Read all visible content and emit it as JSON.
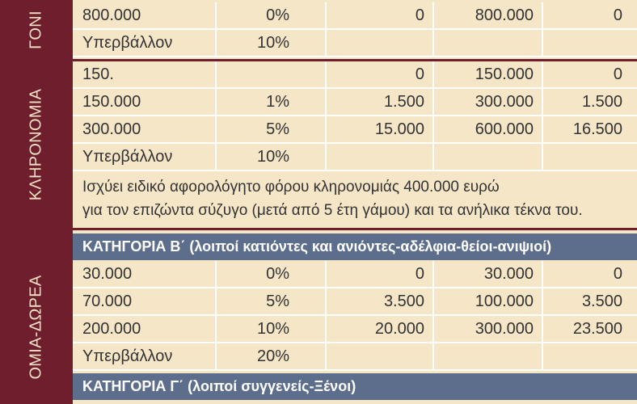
{
  "sections": {
    "goniki": "ΓΟΝΙ",
    "klironomia": "ΚΛΗΡΟΝΟΜΙΑ",
    "dorea": "ΟΜΙΑ-ΔΩΡΕΑ"
  },
  "rows_top": [
    [
      "800.000",
      "0%",
      "0",
      "800.000",
      "0"
    ],
    [
      "Υπερβάλλον",
      "10%",
      "",
      "",
      ""
    ]
  ],
  "rows_klironomia": [
    [
      "150.",
      "",
      "0",
      "150.000",
      "0"
    ],
    [
      "150.000",
      "1%",
      "1.500",
      "300.000",
      "1.500"
    ],
    [
      "300.000",
      "5%",
      "15.000",
      "600.000",
      "16.500"
    ],
    [
      "Υπερβάλλον",
      "10%",
      "",
      "",
      ""
    ]
  ],
  "note": {
    "line1": "Ισχύει ειδικό αφορολόγητο φόρου κληρονομιάς 400.000 ευρώ",
    "line2": "για τον επιζώντα σύζυγο (μετά από 5 έτη γάμου) και τα ανήλικα τέκνα του."
  },
  "category_b": {
    "title": "ΚΑΤΗΓΟΡΙΑ Β΄",
    "subtitle": "(λοιποί κατιόντες και ανιόντες-αδέλφια-θείοι-ανιψιοί)"
  },
  "rows_b": [
    [
      "30.000",
      "0%",
      "0",
      "30.000",
      "0"
    ],
    [
      "70.000",
      "5%",
      "3.500",
      "100.000",
      "3.500"
    ],
    [
      "200.000",
      "10%",
      "20.000",
      "300.000",
      "23.500"
    ],
    [
      "Υπερβάλλον",
      "20%",
      "",
      "",
      ""
    ]
  ],
  "category_c": {
    "title": "ΚΑΤΗΓΟΡΙΑ Γ΄",
    "subtitle": "(λοιποί συγγενείς-Ξένοι)"
  },
  "colors": {
    "band": "#6e1e2c",
    "background": "#f6e6c8",
    "category_bar": "#5d6e8c",
    "grid": "#ffffff"
  }
}
